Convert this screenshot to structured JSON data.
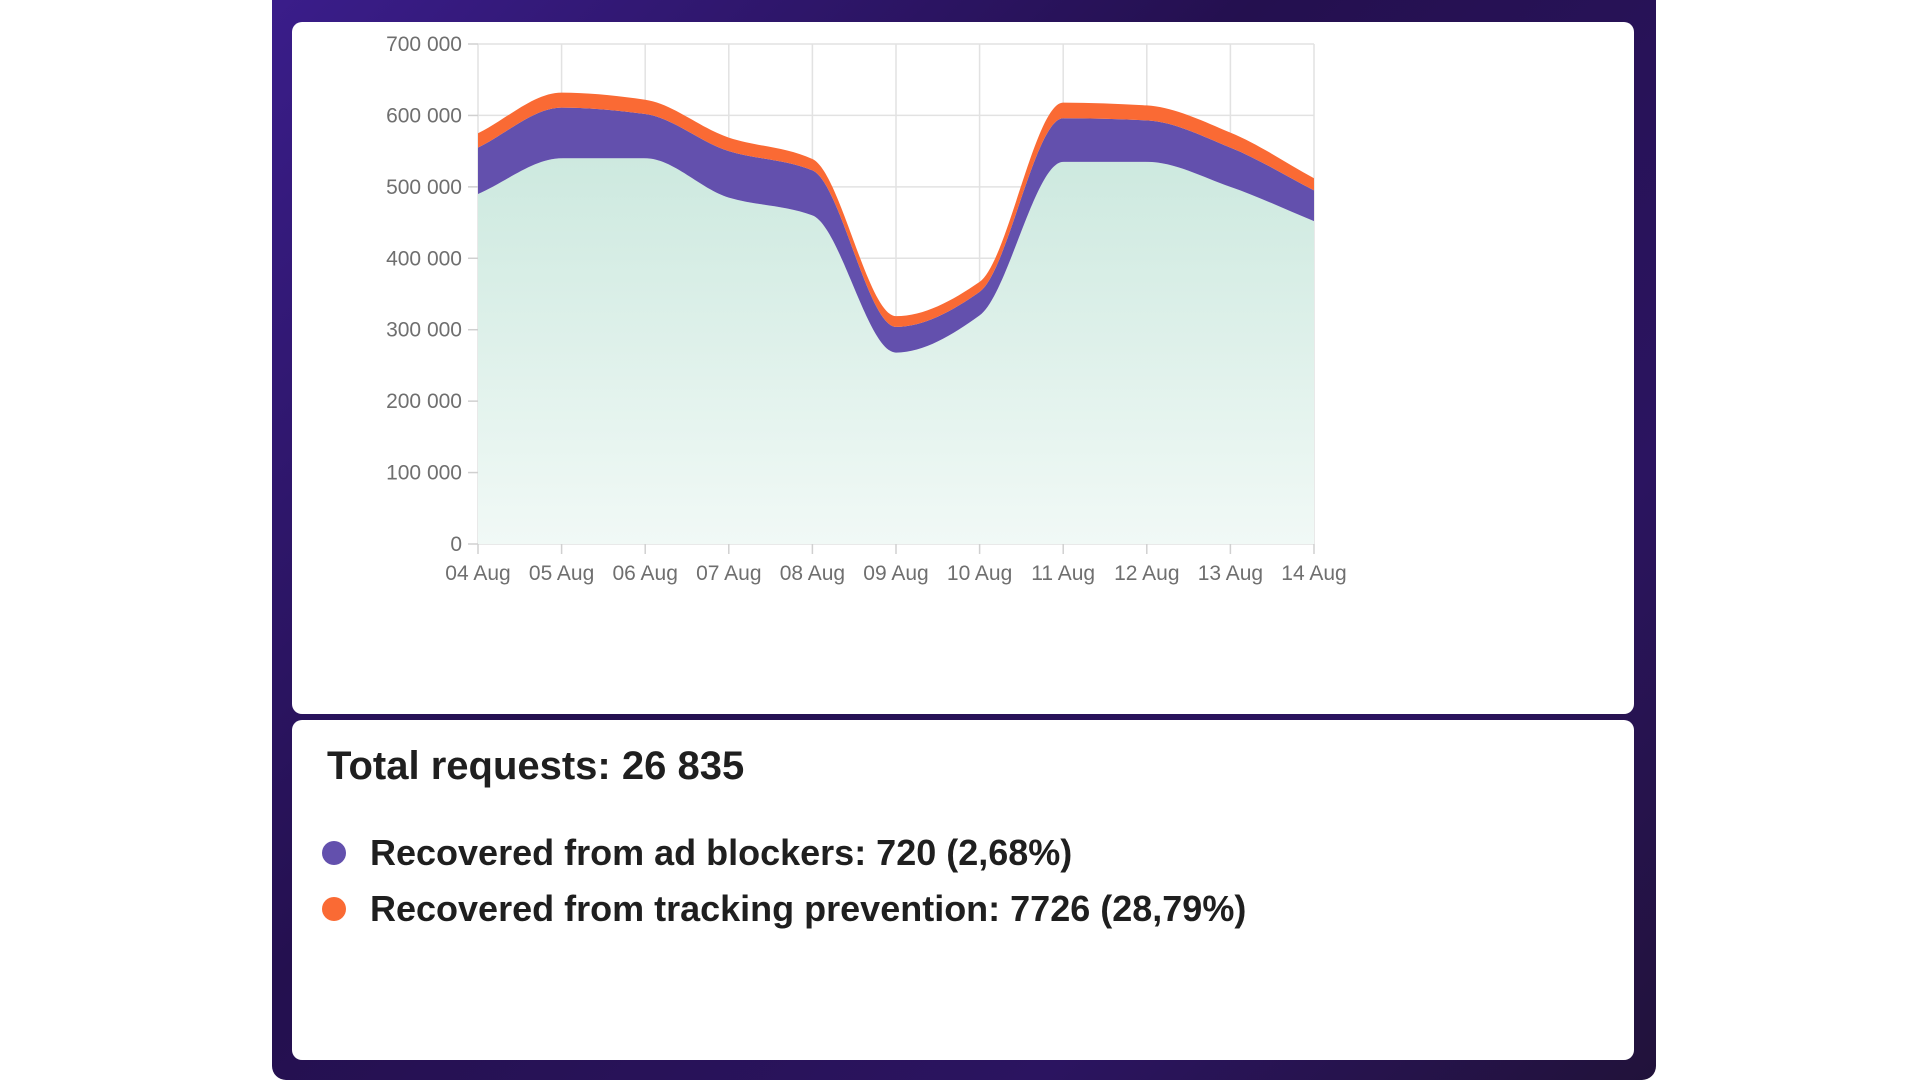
{
  "colors": {
    "background_deep": "#2a1260",
    "total_fill_top": "#cde9df",
    "total_fill_bottom": "#f1f9f6",
    "ad_blockers": "#6350ad",
    "tracking_prevention": "#fa6a34",
    "grid": "#e2e2e2",
    "axis": "#d0d0d0"
  },
  "chart_data": {
    "type": "area",
    "stacked": true,
    "categories": [
      "04 Aug",
      "05 Aug",
      "06 Aug",
      "07 Aug",
      "08 Aug",
      "09 Aug",
      "10 Aug",
      "11 Aug",
      "12 Aug",
      "13 Aug",
      "14 Aug"
    ],
    "ylim": [
      0,
      700000
    ],
    "yticks": [
      0,
      100000,
      200000,
      300000,
      400000,
      500000,
      600000,
      700000
    ],
    "ytick_labels": [
      "0",
      "100 000",
      "200 000",
      "300 000",
      "400 000",
      "500 000",
      "600 000",
      "700 000"
    ],
    "grid": true,
    "series": [
      {
        "key": "base",
        "color": "#cde9df",
        "values": [
          490000,
          540000,
          540000,
          485000,
          460000,
          268000,
          320000,
          535000,
          535000,
          500000,
          452000
        ]
      },
      {
        "key": "ad_blockers",
        "color": "#6350ad",
        "values": [
          65000,
          71000,
          62000,
          65000,
          63000,
          36000,
          33000,
          61000,
          58000,
          55000,
          43000
        ]
      },
      {
        "key": "tracking_prevention",
        "color": "#fa6a34",
        "values": [
          20000,
          21000,
          20000,
          19000,
          16000,
          15000,
          14000,
          22000,
          21000,
          21000,
          17000
        ]
      }
    ]
  },
  "stats": {
    "total": "Total requests: 26 835",
    "legend": [
      {
        "color": "#6350ad",
        "label": "Recovered from ad blockers: 720 (2,68%)"
      },
      {
        "color": "#fa6a34",
        "label": "Recovered from tracking prevention: 7726 (28,79%)"
      }
    ]
  }
}
